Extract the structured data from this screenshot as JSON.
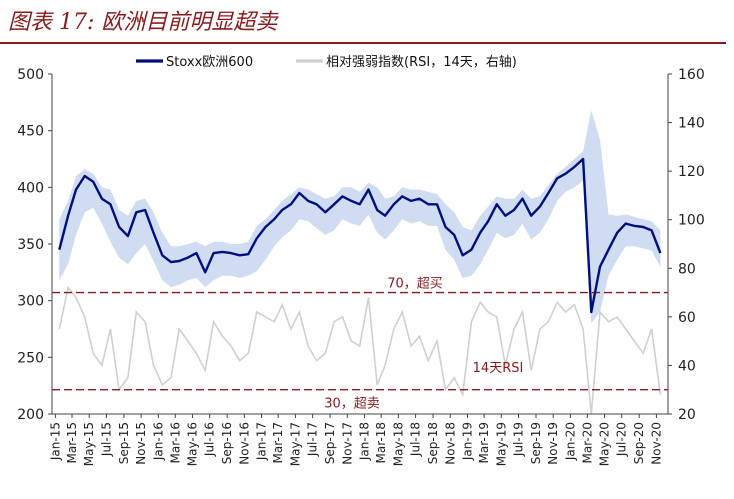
{
  "title": "图表 17: 欧洲目前明显超卖",
  "chart_data": {
    "type": "line",
    "legend_position": "top",
    "grid": false,
    "series": [
      {
        "name": "Stoxx欧洲600",
        "axis": "left",
        "color": "#000f80",
        "x": [
          "2015-01",
          "2015-02",
          "2015-03",
          "2015-04",
          "2015-05",
          "2015-06",
          "2015-07",
          "2015-08",
          "2015-09",
          "2015-10",
          "2015-11",
          "2015-12",
          "2016-01",
          "2016-02",
          "2016-03",
          "2016-04",
          "2016-05",
          "2016-06",
          "2016-07",
          "2016-08",
          "2016-09",
          "2016-10",
          "2016-11",
          "2016-12",
          "2017-01",
          "2017-02",
          "2017-03",
          "2017-04",
          "2017-05",
          "2017-06",
          "2017-07",
          "2017-08",
          "2017-09",
          "2017-10",
          "2017-11",
          "2017-12",
          "2018-01",
          "2018-02",
          "2018-03",
          "2018-04",
          "2018-05",
          "2018-06",
          "2018-07",
          "2018-08",
          "2018-09",
          "2018-10",
          "2018-11",
          "2018-12",
          "2019-01",
          "2019-02",
          "2019-03",
          "2019-04",
          "2019-05",
          "2019-06",
          "2019-07",
          "2019-08",
          "2019-09",
          "2019-10",
          "2019-11",
          "2019-12",
          "2020-01",
          "2020-02",
          "2020-03",
          "2020-04",
          "2020-05",
          "2020-06",
          "2020-07",
          "2020-08",
          "2020-09",
          "2020-10",
          "2020-11"
        ],
        "values": [
          345,
          375,
          398,
          410,
          405,
          390,
          385,
          365,
          357,
          378,
          380,
          360,
          340,
          334,
          335,
          338,
          342,
          325,
          342,
          343,
          342,
          340,
          341,
          355,
          365,
          372,
          380,
          385,
          395,
          388,
          385,
          378,
          385,
          392,
          388,
          385,
          398,
          380,
          375,
          385,
          392,
          388,
          390,
          385,
          385,
          365,
          358,
          340,
          345,
          360,
          370,
          385,
          375,
          380,
          390,
          375,
          383,
          395,
          408,
          412,
          418,
          425,
          290,
          330,
          345,
          360,
          368,
          366,
          365,
          362,
          342
        ]
      },
      {
        "name": "相对强弱指数(RSI，14天，右轴)",
        "axis": "right",
        "color": "#d0d0d0",
        "x": [
          "2015-01",
          "2015-02",
          "2015-03",
          "2015-04",
          "2015-05",
          "2015-06",
          "2015-07",
          "2015-08",
          "2015-09",
          "2015-10",
          "2015-11",
          "2015-12",
          "2016-01",
          "2016-02",
          "2016-03",
          "2016-04",
          "2016-05",
          "2016-06",
          "2016-07",
          "2016-08",
          "2016-09",
          "2016-10",
          "2016-11",
          "2016-12",
          "2017-01",
          "2017-02",
          "2017-03",
          "2017-04",
          "2017-05",
          "2017-06",
          "2017-07",
          "2017-08",
          "2017-09",
          "2017-10",
          "2017-11",
          "2017-12",
          "2018-01",
          "2018-02",
          "2018-03",
          "2018-04",
          "2018-05",
          "2018-06",
          "2018-07",
          "2018-08",
          "2018-09",
          "2018-10",
          "2018-11",
          "2018-12",
          "2019-01",
          "2019-02",
          "2019-03",
          "2019-04",
          "2019-05",
          "2019-06",
          "2019-07",
          "2019-08",
          "2019-09",
          "2019-10",
          "2019-11",
          "2019-12",
          "2020-01",
          "2020-02",
          "2020-03",
          "2020-04",
          "2020-05",
          "2020-06",
          "2020-07",
          "2020-08",
          "2020-09",
          "2020-10",
          "2020-11"
        ],
        "values": [
          55,
          72,
          68,
          60,
          45,
          40,
          55,
          30,
          35,
          62,
          58,
          40,
          32,
          35,
          55,
          50,
          45,
          38,
          58,
          52,
          48,
          42,
          45,
          62,
          60,
          58,
          65,
          55,
          62,
          48,
          42,
          45,
          58,
          60,
          50,
          48,
          68,
          32,
          40,
          55,
          62,
          48,
          52,
          42,
          50,
          30,
          35,
          28,
          58,
          66,
          62,
          60,
          40,
          55,
          62,
          38,
          55,
          58,
          66,
          62,
          65,
          55,
          20,
          62,
          58,
          60,
          55,
          50,
          45,
          55,
          28
        ]
      }
    ],
    "band_series": {
      "upper": [
        372,
        388,
        410,
        416,
        412,
        400,
        398,
        380,
        375,
        388,
        390,
        378,
        360,
        348,
        348,
        350,
        352,
        348,
        352,
        352,
        350,
        350,
        352,
        366,
        372,
        380,
        388,
        394,
        400,
        398,
        394,
        390,
        392,
        400,
        400,
        396,
        404,
        400,
        390,
        392,
        400,
        398,
        398,
        396,
        394,
        385,
        378,
        365,
        362,
        375,
        383,
        392,
        390,
        390,
        398,
        390,
        392,
        402,
        412,
        418,
        425,
        432,
        468,
        442,
        376,
        375,
        376,
        374,
        372,
        370,
        362
      ],
      "lower": [
        318,
        332,
        358,
        378,
        382,
        368,
        352,
        338,
        332,
        342,
        350,
        335,
        318,
        312,
        314,
        318,
        320,
        312,
        318,
        322,
        322,
        320,
        322,
        326,
        336,
        348,
        356,
        362,
        372,
        370,
        364,
        358,
        362,
        372,
        368,
        366,
        376,
        360,
        354,
        362,
        372,
        368,
        370,
        366,
        366,
        345,
        336,
        320,
        322,
        332,
        345,
        360,
        355,
        358,
        368,
        354,
        360,
        372,
        388,
        396,
        400,
        406,
        280,
        290,
        322,
        336,
        348,
        348,
        346,
        344,
        330
      ]
    },
    "y_left": {
      "min": 200,
      "max": 500,
      "ticks": [
        "200",
        "250",
        "300",
        "350",
        "400",
        "450",
        "500"
      ]
    },
    "y_right": {
      "min": 20,
      "max": 160,
      "ticks": [
        "20",
        "40",
        "60",
        "80",
        "100",
        "120",
        "140",
        "160"
      ]
    },
    "x_ticks": [
      "Jan-15",
      "Mar-15",
      "May-15",
      "Jul-15",
      "Sep-15",
      "Nov-15",
      "Jan-16",
      "Mar-16",
      "May-16",
      "Jul-16",
      "Sep-16",
      "Nov-16",
      "Jan-17",
      "Mar-17",
      "May-17",
      "Jul-17",
      "Sep-17",
      "Nov-17",
      "Jan-18",
      "Mar-18",
      "May-18",
      "Jul-18",
      "Sep-18",
      "Nov-18",
      "Jan-19",
      "Mar-19",
      "May-19",
      "Jul-19",
      "Sep-19",
      "Nov-19",
      "Jan-20",
      "Mar-20",
      "May-20",
      "Jul-20",
      "Sep-20",
      "Nov-20"
    ],
    "reference_lines": [
      {
        "axis": "right",
        "value": 70,
        "label": "70，超买",
        "color": "#8b1a1a"
      },
      {
        "axis": "right",
        "value": 30,
        "label": "30，超卖",
        "color": "#8b1a1a"
      }
    ],
    "annotations": [
      {
        "text": "14天RSI",
        "color": "#8b1a1a"
      }
    ]
  }
}
